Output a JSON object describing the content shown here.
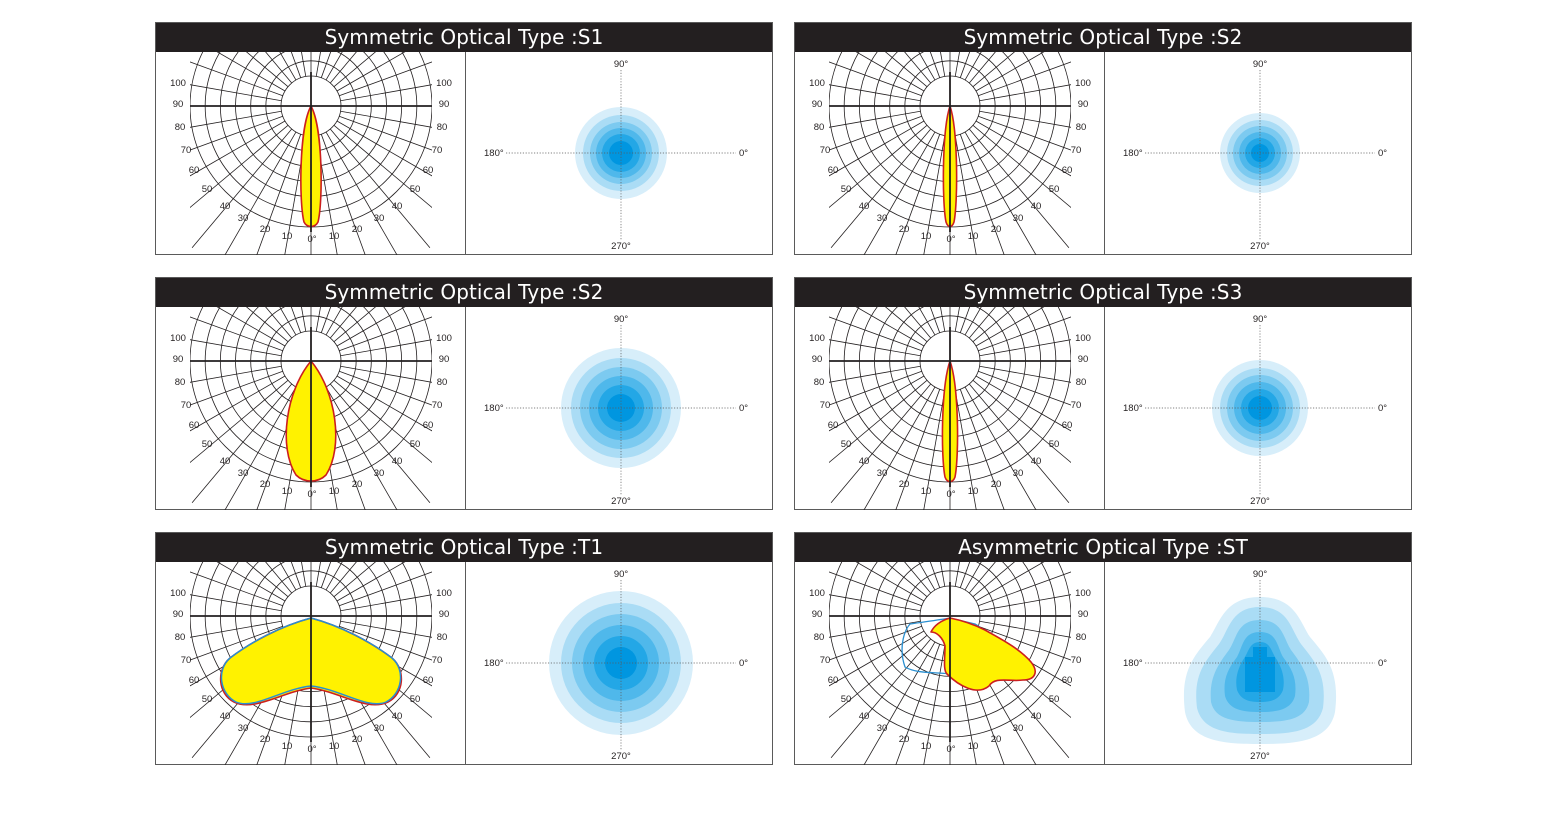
{
  "panels": [
    {
      "title": "Symmetric Optical Type :S1",
      "distribution": "narrow",
      "spot_size": "small"
    },
    {
      "title": "Symmetric Optical Type :S2",
      "distribution": "narrow",
      "spot_size": "small"
    },
    {
      "title": "Symmetric Optical Type :S2",
      "distribution": "medium",
      "spot_size": "medium"
    },
    {
      "title": "Symmetric Optical Type :S3",
      "distribution": "narrow",
      "spot_size": "medium"
    },
    {
      "title": "Symmetric Optical Type :T1",
      "distribution": "wide",
      "spot_size": "large"
    },
    {
      "title": "Asymmetric Optical Type :ST",
      "distribution": "asymmetric",
      "spot_size": "asymmetric"
    }
  ],
  "polar_chart": {
    "left_scale": [
      "100",
      "90",
      "80",
      "70",
      "60",
      "50",
      "40",
      "30",
      "20",
      "10"
    ],
    "bottom_labels": [
      "10",
      "0°",
      "10"
    ],
    "right_scale": [
      "100",
      "90",
      "80",
      "70",
      "60",
      "50",
      "40",
      "30",
      "20"
    ]
  },
  "spot_chart": {
    "top": "90°",
    "left": "180°",
    "right": "0°",
    "bottom": "270°"
  },
  "colors": {
    "header_bg": "#231f20",
    "header_text": "#ffffff",
    "beam_fill": "#fff200",
    "beam_outline": "#cc1f1f",
    "secondary_outline": "#2a8fd0",
    "spot_rings": [
      "#d7eefa",
      "#aadcf5",
      "#7ccaf0",
      "#4fb8eb",
      "#23a7e6",
      "#0096e0"
    ]
  }
}
